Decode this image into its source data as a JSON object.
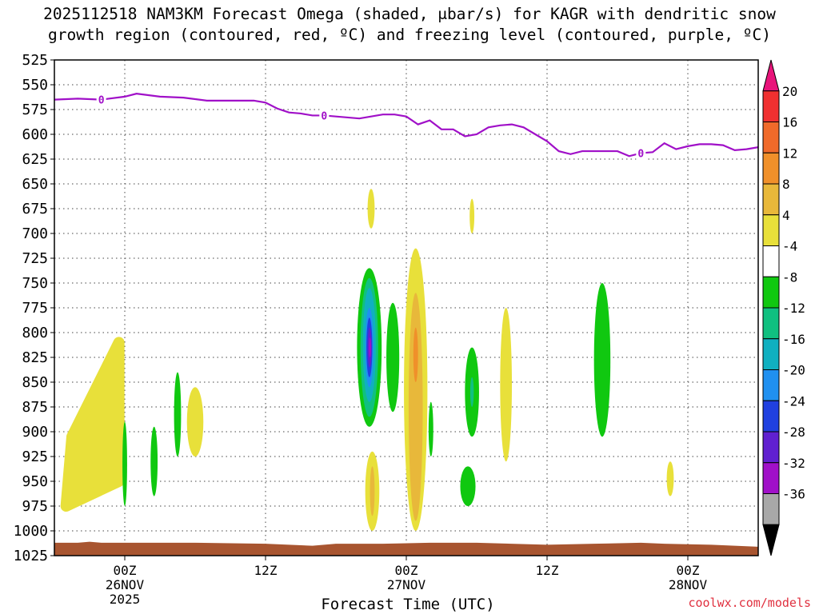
{
  "title": {
    "line1": "2025112518 NAM3KM Forecast Omega (shaded, μbar/s) for KAGR with dendritic snow",
    "line2": "growth region (contoured, red, ºC) and freezing level (contoured, purple, ºC)"
  },
  "watermark": "coolwx.com/models",
  "chart_data": {
    "type": "heatmap",
    "title": "2025112518 NAM3KM Forecast Omega (shaded, μbar/s) for KAGR with dendritic snow growth region (contoured, red, ºC) and freezing level (contoured, purple, ºC)",
    "xlabel": "Forecast Time (UTC)",
    "ylabel": "",
    "x_unit": "forecast hour",
    "xlim": [
      0,
      60
    ],
    "ylim": [
      1025,
      525
    ],
    "y_ticks": [
      525,
      550,
      575,
      600,
      625,
      650,
      675,
      700,
      725,
      750,
      775,
      800,
      825,
      850,
      875,
      900,
      925,
      950,
      975,
      1000,
      1025
    ],
    "x_ticks": [
      {
        "hour": 6,
        "label": "00Z",
        "sub": "26NOV",
        "sub2": "2025"
      },
      {
        "hour": 18,
        "label": "12Z",
        "sub": "",
        "sub2": ""
      },
      {
        "hour": 30,
        "label": "00Z",
        "sub": "27NOV",
        "sub2": ""
      },
      {
        "hour": 42,
        "label": "12Z",
        "sub": "",
        "sub2": ""
      },
      {
        "hour": 54,
        "label": "00Z",
        "sub": "28NOV",
        "sub2": ""
      }
    ],
    "colorbar": {
      "labels": [
        "20",
        "16",
        "12",
        "8",
        "4",
        "-4",
        "-8",
        "-12",
        "-16",
        "-20",
        "-24",
        "-28",
        "-32",
        "-36"
      ],
      "levels": [
        {
          "color": "#e8147a"
        },
        {
          "color": "#f03030"
        },
        {
          "color": "#f06a2a"
        },
        {
          "color": "#f0902a"
        },
        {
          "color": "#e8b83a"
        },
        {
          "color": "#e8e03a"
        },
        {
          "color": "#ffffff"
        },
        {
          "color": "#10c810"
        },
        {
          "color": "#10c080"
        },
        {
          "color": "#10b0c0"
        },
        {
          "color": "#2090f0"
        },
        {
          "color": "#2040e0"
        },
        {
          "color": "#6020d0"
        },
        {
          "color": "#a010c8"
        },
        {
          "color": "#a8a8a8"
        },
        {
          "color": "#000000"
        }
      ]
    },
    "freezing_level": {
      "label": "0",
      "label_hours": [
        4,
        23,
        50
      ],
      "points": [
        [
          0,
          565
        ],
        [
          2,
          564
        ],
        [
          4,
          565
        ],
        [
          6,
          562
        ],
        [
          7,
          559
        ],
        [
          9,
          562
        ],
        [
          11,
          563
        ],
        [
          13,
          566
        ],
        [
          15,
          566
        ],
        [
          17,
          566
        ],
        [
          18,
          568
        ],
        [
          19,
          574
        ],
        [
          20,
          578
        ],
        [
          21,
          579
        ],
        [
          22,
          581
        ],
        [
          23,
          581
        ],
        [
          24,
          582
        ],
        [
          26,
          584
        ],
        [
          27,
          582
        ],
        [
          28,
          580
        ],
        [
          29,
          580
        ],
        [
          30,
          582
        ],
        [
          31,
          590
        ],
        [
          32,
          586
        ],
        [
          33,
          595
        ],
        [
          34,
          595
        ],
        [
          35,
          602
        ],
        [
          36,
          600
        ],
        [
          37,
          593
        ],
        [
          38,
          591
        ],
        [
          39,
          590
        ],
        [
          40,
          593
        ],
        [
          41,
          600
        ],
        [
          42,
          607
        ],
        [
          43,
          617
        ],
        [
          44,
          620
        ],
        [
          45,
          617
        ],
        [
          46,
          617
        ],
        [
          47,
          617
        ],
        [
          48,
          617
        ],
        [
          49,
          622
        ],
        [
          50,
          619
        ],
        [
          51,
          618
        ],
        [
          52,
          609
        ],
        [
          53,
          615
        ],
        [
          54,
          612
        ],
        [
          55,
          610
        ],
        [
          56,
          610
        ],
        [
          57,
          611
        ],
        [
          58,
          616
        ],
        [
          59,
          615
        ],
        [
          60,
          613
        ]
      ]
    },
    "omega_regions": [
      {
        "value": "4",
        "x": [
          1.5,
          5.5,
          5.5,
          1.0
        ],
        "p": [
          905,
          810,
          950,
          975
        ],
        "color": "#e8e03a"
      },
      {
        "value": "-4",
        "x": [
          5.8,
          6.2
        ],
        "p": [
          890,
          975
        ],
        "color": "#10c810"
      },
      {
        "value": "-4",
        "x": [
          8.2,
          8.8
        ],
        "p": [
          895,
          965
        ],
        "color": "#10c810"
      },
      {
        "value": "-4",
        "x": [
          10.2,
          10.8
        ],
        "p": [
          840,
          925
        ],
        "color": "#10c810"
      },
      {
        "value": "4",
        "x": [
          11.3,
          12.7
        ],
        "p": [
          855,
          925
        ],
        "color": "#e8e03a"
      },
      {
        "value": "4",
        "x": [
          26.7,
          27.3
        ],
        "p": [
          655,
          695
        ],
        "color": "#e8e03a"
      },
      {
        "value": "-4",
        "x": [
          25.8,
          27.9
        ],
        "p": [
          735,
          895
        ],
        "color": "#10c810"
      },
      {
        "value": "-8",
        "x": [
          26.1,
          27.6
        ],
        "p": [
          745,
          885
        ],
        "color": "#10c080"
      },
      {
        "value": "-12",
        "x": [
          26.3,
          27.4
        ],
        "p": [
          755,
          870
        ],
        "color": "#10b0c0"
      },
      {
        "value": "-16",
        "x": [
          26.5,
          27.2
        ],
        "p": [
          775,
          855
        ],
        "color": "#2090f0"
      },
      {
        "value": "-20",
        "x": [
          26.6,
          27.1
        ],
        "p": [
          785,
          845
        ],
        "color": "#2040e0"
      },
      {
        "value": "-24",
        "x": [
          26.7,
          27.05
        ],
        "p": [
          795,
          835
        ],
        "color": "#6020d0"
      },
      {
        "value": "-28",
        "x": [
          26.8,
          27.0
        ],
        "p": [
          805,
          825
        ],
        "color": "#a010c8"
      },
      {
        "value": "-4",
        "x": [
          28.3,
          29.4
        ],
        "p": [
          770,
          880
        ],
        "color": "#10c810"
      },
      {
        "value": "4",
        "x": [
          26.5,
          27.7
        ],
        "p": [
          920,
          1000
        ],
        "color": "#e8e03a"
      },
      {
        "value": "8",
        "x": [
          26.9,
          27.3
        ],
        "p": [
          935,
          985
        ],
        "color": "#e8b83a"
      },
      {
        "value": "4",
        "x": [
          29.8,
          31.8
        ],
        "p": [
          715,
          1000
        ],
        "color": "#e8e03a"
      },
      {
        "value": "8",
        "x": [
          30.2,
          31.4
        ],
        "p": [
          760,
          990
        ],
        "color": "#e8b83a"
      },
      {
        "value": "12",
        "x": [
          30.6,
          31.0
        ],
        "p": [
          795,
          850
        ],
        "color": "#f0902a"
      },
      {
        "value": "-4",
        "x": [
          31.9,
          32.3
        ],
        "p": [
          870,
          925
        ],
        "color": "#10c810"
      },
      {
        "value": "-4",
        "x": [
          34.6,
          35.9
        ],
        "p": [
          935,
          975
        ],
        "color": "#10c810"
      },
      {
        "value": "4",
        "x": [
          35.4,
          35.8
        ],
        "p": [
          665,
          700
        ],
        "color": "#e8e03a"
      },
      {
        "value": "-4",
        "x": [
          35.0,
          36.2
        ],
        "p": [
          815,
          905
        ],
        "color": "#10c810"
      },
      {
        "value": "-8",
        "x": [
          35.45,
          35.75
        ],
        "p": [
          845,
          875
        ],
        "color": "#10c080"
      },
      {
        "value": "4",
        "x": [
          38.0,
          39.0
        ],
        "p": [
          775,
          930
        ],
        "color": "#e8e03a"
      },
      {
        "value": "-4",
        "x": [
          46.0,
          47.4
        ],
        "p": [
          750,
          905
        ],
        "color": "#10c810"
      },
      {
        "value": "4",
        "x": [
          52.2,
          52.8
        ],
        "p": [
          930,
          965
        ],
        "color": "#e8e03a"
      }
    ],
    "terrain": {
      "color": "#a85530",
      "surface_points": [
        [
          0,
          1012
        ],
        [
          2,
          1012
        ],
        [
          3,
          1011
        ],
        [
          4,
          1012
        ],
        [
          8,
          1012
        ],
        [
          12,
          1012
        ],
        [
          18,
          1013
        ],
        [
          22,
          1015
        ],
        [
          24,
          1013
        ],
        [
          28,
          1013
        ],
        [
          32,
          1012
        ],
        [
          36,
          1012
        ],
        [
          42,
          1014
        ],
        [
          46,
          1013
        ],
        [
          50,
          1012
        ],
        [
          52,
          1013
        ],
        [
          56,
          1014
        ],
        [
          60,
          1016
        ]
      ]
    }
  }
}
